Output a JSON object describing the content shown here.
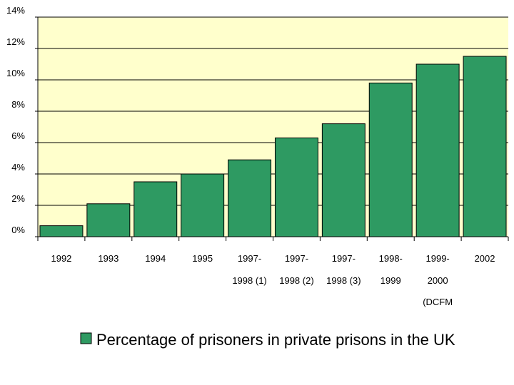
{
  "chart_data": {
    "type": "bar",
    "categories": [
      [
        "1992"
      ],
      [
        "1993"
      ],
      [
        "1994"
      ],
      [
        "1995"
      ],
      [
        "1997-",
        "1998 (1)"
      ],
      [
        "1997-",
        "1998 (2)"
      ],
      [
        "1997-",
        "1998 (3)"
      ],
      [
        "1998-",
        "1999"
      ],
      [
        "1999-",
        "2000",
        "(DCFM"
      ],
      [
        "2002"
      ]
    ],
    "series": [
      {
        "name": "Percentage of prisoners in private prisons in the UK",
        "values": [
          0.7,
          2.1,
          3.5,
          4.0,
          4.9,
          6.3,
          7.2,
          9.8,
          11.0,
          11.5
        ]
      }
    ],
    "ylim": [
      0,
      14
    ],
    "yticks": [
      0,
      2,
      4,
      6,
      8,
      10,
      12,
      14
    ],
    "ytick_labels": [
      "0%",
      "2%",
      "4%",
      "6%",
      "8%",
      "10%",
      "12%",
      "14%"
    ],
    "title": "",
    "xlabel": "",
    "ylabel": "",
    "grid": true,
    "legend": "bottom",
    "colors": {
      "bar": "#2e9a62",
      "bar_stroke": "#000000",
      "plot_bg": "#ffffcc",
      "grid": "#000000"
    }
  }
}
